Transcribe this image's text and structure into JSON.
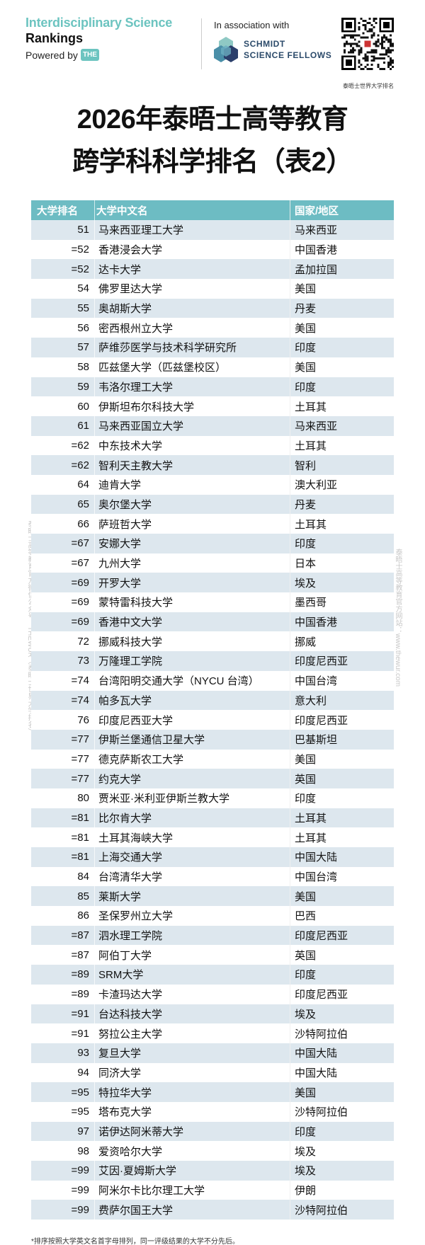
{
  "header": {
    "brand_line1": "Interdisciplinary Science",
    "brand_line2": "Rankings",
    "powered_by": "Powered by",
    "the_badge": "THE",
    "association": "In association with",
    "partner_line1": "SCHMIDT",
    "partner_line2": "SCIENCE FELLOWS",
    "qr_caption": "泰晤士世界大学排名",
    "brand_color": "#6cc4c0"
  },
  "title": {
    "line1": "2026年泰晤士高等教育",
    "line2": "跨学科科学排名（表2）"
  },
  "table": {
    "header_color": "#6dbcc3",
    "stripe_color": "#dde7ee",
    "columns": [
      "大学排名",
      "大学中文名",
      "国家/地区"
    ],
    "rows": [
      [
        "51",
        "马来西亚理工大学",
        "马来西亚"
      ],
      [
        "=52",
        "香港浸会大学",
        "中国香港"
      ],
      [
        "=52",
        "达卡大学",
        "孟加拉国"
      ],
      [
        "54",
        "佛罗里达大学",
        "美国"
      ],
      [
        "55",
        "奥胡斯大学",
        "丹麦"
      ],
      [
        "56",
        "密西根州立大学",
        "美国"
      ],
      [
        "57",
        "萨维莎医学与技术科学研究所",
        "印度"
      ],
      [
        "58",
        "匹兹堡大学（匹兹堡校区）",
        "美国"
      ],
      [
        "59",
        "韦洛尔理工大学",
        "印度"
      ],
      [
        "60",
        "伊斯坦布尔科技大学",
        "土耳其"
      ],
      [
        "61",
        "马来西亚国立大学",
        "马来西亚"
      ],
      [
        "=62",
        "中东技术大学",
        "土耳其"
      ],
      [
        "=62",
        "智利天主教大学",
        "智利"
      ],
      [
        "64",
        "迪肯大学",
        "澳大利亚"
      ],
      [
        "65",
        "奥尔堡大学",
        "丹麦"
      ],
      [
        "66",
        "萨班哲大学",
        "土耳其"
      ],
      [
        "=67",
        "安娜大学",
        "印度"
      ],
      [
        "=67",
        "九州大学",
        "日本"
      ],
      [
        "=69",
        "开罗大学",
        "埃及"
      ],
      [
        "=69",
        "蒙特雷科技大学",
        "墨西哥"
      ],
      [
        "=69",
        "香港中文大学",
        "中国香港"
      ],
      [
        "72",
        "挪威科技大学",
        "挪威"
      ],
      [
        "73",
        "万隆理工学院",
        "印度尼西亚"
      ],
      [
        "=74",
        "台湾阳明交通大学（NYCU 台湾）",
        "中国台湾"
      ],
      [
        "=74",
        "帕多瓦大学",
        "意大利"
      ],
      [
        "76",
        "印度尼西亚大学",
        "印度尼西亚"
      ],
      [
        "=77",
        "伊斯兰堡通信卫星大学",
        "巴基斯坦"
      ],
      [
        "=77",
        "德克萨斯农工大学",
        "美国"
      ],
      [
        "=77",
        "约克大学",
        "英国"
      ],
      [
        "80",
        "贾米亚·米利亚伊斯兰教大学",
        "印度"
      ],
      [
        "=81",
        "比尔肯大学",
        "土耳其"
      ],
      [
        "=81",
        "土耳其海峡大学",
        "土耳其"
      ],
      [
        "=81",
        "上海交通大学",
        "中国大陆"
      ],
      [
        "84",
        "台湾清华大学",
        "中国台湾"
      ],
      [
        "85",
        "莱斯大学",
        "美国"
      ],
      [
        "86",
        "圣保罗州立大学",
        "巴西"
      ],
      [
        "=87",
        "泗水理工学院",
        "印度尼西亚"
      ],
      [
        "=87",
        "阿伯丁大学",
        "英国"
      ],
      [
        "=89",
        "SRM大学",
        "印度"
      ],
      [
        "=89",
        "卡渣玛达大学",
        "印度尼西亚"
      ],
      [
        "=91",
        "台达科技大学",
        "埃及"
      ],
      [
        "=91",
        "努拉公主大学",
        "沙特阿拉伯"
      ],
      [
        "93",
        "复旦大学",
        "中国大陆"
      ],
      [
        "94",
        "同济大学",
        "中国大陆"
      ],
      [
        "=95",
        "特拉华大学",
        "美国"
      ],
      [
        "=95",
        "塔布克大学",
        "沙特阿拉伯"
      ],
      [
        "97",
        "诺伊达阿米蒂大学",
        "印度"
      ],
      [
        "98",
        "爱资哈尔大学",
        "埃及"
      ],
      [
        "=99",
        "艾因·夏姆斯大学",
        "埃及"
      ],
      [
        "=99",
        "阿米尔卡比尔理工大学",
        "伊朗"
      ],
      [
        "=99",
        "费萨尔国王大学",
        "沙特阿拉伯"
      ]
    ]
  },
  "watermarks": {
    "left": "泰晤士高等教育官方微信公众号：THEWUR（泰晤士世界大学排名）",
    "right": "泰晤士高等教育官方网站：www.thewur.com"
  },
  "footnote": "*排序按照大学英文名首字母排列，同一评级结果的大学不分先后。"
}
